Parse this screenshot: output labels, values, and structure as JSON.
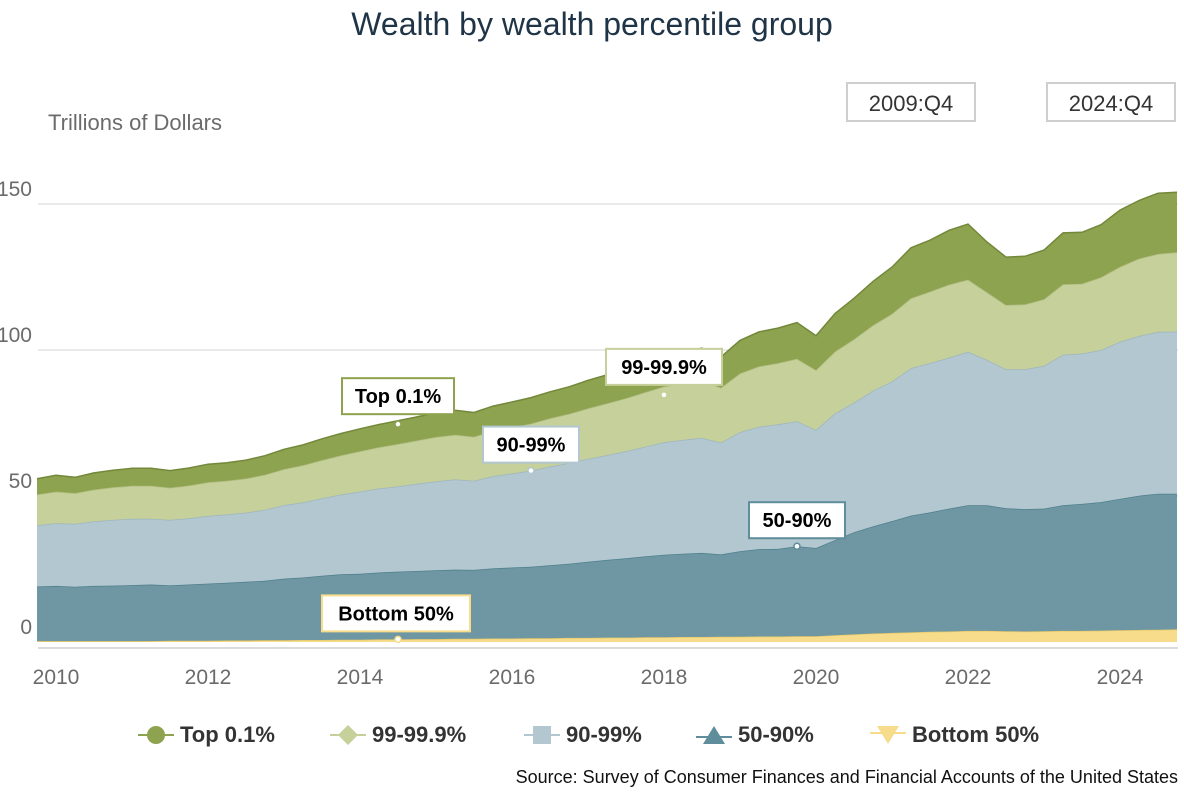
{
  "header": {
    "title": "Wealth by wealth percentile group",
    "y_unit_label": "Trillions of Dollars",
    "range_start": "2009:Q4",
    "range_end": "2024:Q4"
  },
  "source": "Source: Survey of Consumer Finances and Financial Accounts of the United States",
  "colors": {
    "top01": "#8ea34f",
    "p99_999": "#c5d09a",
    "p90_99": "#b2c7cf",
    "p50_90": "#6e97a3",
    "bottom50": "#f7dc8c",
    "grid": "#d6d6d6"
  },
  "chart_data": {
    "type": "area",
    "stacked": true,
    "title": "Wealth by wealth percentile group",
    "ylabel": "Trillions of Dollars",
    "xlabel": "",
    "ylim": [
      0,
      160
    ],
    "xlim": [
      2009.75,
      2024.75
    ],
    "y_ticks": [
      0,
      50,
      100,
      150
    ],
    "x_ticks": [
      2010,
      2012,
      2014,
      2016,
      2018,
      2020,
      2022,
      2024
    ],
    "legend_position": "bottom",
    "grid": true,
    "x": [
      2009.75,
      2010.0,
      2010.25,
      2010.5,
      2010.75,
      2011.0,
      2011.25,
      2011.5,
      2011.75,
      2012.0,
      2012.25,
      2012.5,
      2012.75,
      2013.0,
      2013.25,
      2013.5,
      2013.75,
      2014.0,
      2014.25,
      2014.5,
      2014.75,
      2015.0,
      2015.25,
      2015.5,
      2015.75,
      2016.0,
      2016.25,
      2016.5,
      2016.75,
      2017.0,
      2017.25,
      2017.5,
      2017.75,
      2018.0,
      2018.25,
      2018.5,
      2018.75,
      2019.0,
      2019.25,
      2019.5,
      2019.75,
      2020.0,
      2020.25,
      2020.5,
      2020.75,
      2021.0,
      2021.25,
      2021.5,
      2021.75,
      2022.0,
      2022.25,
      2022.5,
      2022.75,
      2023.0,
      2023.25,
      2023.5,
      2023.75,
      2024.0,
      2024.25,
      2024.5,
      2024.75
    ],
    "series": [
      {
        "name": "Bottom 50%",
        "values": [
          0.3,
          0.3,
          0.3,
          0.3,
          0.3,
          0.3,
          0.3,
          0.4,
          0.4,
          0.4,
          0.5,
          0.5,
          0.6,
          0.6,
          0.7,
          0.7,
          0.8,
          0.8,
          0.9,
          0.9,
          1.0,
          1.0,
          1.1,
          1.1,
          1.2,
          1.2,
          1.3,
          1.3,
          1.4,
          1.4,
          1.5,
          1.5,
          1.6,
          1.6,
          1.7,
          1.7,
          1.8,
          1.8,
          1.9,
          1.9,
          2.0,
          2.0,
          2.3,
          2.6,
          2.9,
          3.1,
          3.3,
          3.5,
          3.6,
          3.8,
          3.8,
          3.7,
          3.6,
          3.7,
          3.8,
          3.8,
          3.9,
          4.0,
          4.1,
          4.2,
          4.3
        ]
      },
      {
        "name": "50-90%",
        "values": [
          18.7,
          18.9,
          18.6,
          18.9,
          19.0,
          19.2,
          19.4,
          19.0,
          19.3,
          19.6,
          19.8,
          20.1,
          20.4,
          21.1,
          21.4,
          22.0,
          22.4,
          22.6,
          22.9,
          23.2,
          23.3,
          23.6,
          23.7,
          23.6,
          24.0,
          24.3,
          24.5,
          25.0,
          25.4,
          26.1,
          26.6,
          27.2,
          27.7,
          28.3,
          28.5,
          28.8,
          28.2,
          29.3,
          29.9,
          30.0,
          30.8,
          30.2,
          32.6,
          35.0,
          36.7,
          38.3,
          40.0,
          40.9,
          42.1,
          43.0,
          43.0,
          42.1,
          41.9,
          42.0,
          43.0,
          43.5,
          44.0,
          45.0,
          46.0,
          46.6,
          46.5
        ]
      },
      {
        "name": "90-99%",
        "values": [
          21.0,
          21.5,
          21.6,
          22.1,
          22.5,
          22.7,
          22.5,
          22.4,
          22.7,
          23.2,
          23.4,
          23.7,
          24.3,
          25.2,
          25.7,
          26.5,
          27.3,
          28.1,
          28.8,
          29.2,
          29.9,
          30.4,
          30.9,
          30.5,
          31.6,
          32.2,
          32.9,
          33.8,
          34.5,
          35.2,
          35.9,
          36.6,
          37.6,
          38.5,
          39.0,
          39.4,
          38.3,
          40.8,
          41.9,
          42.7,
          42.8,
          40.4,
          43.4,
          44.4,
          46.5,
          47.8,
          50.5,
          51.1,
          51.7,
          52.6,
          49.8,
          47.6,
          47.9,
          48.9,
          51.6,
          51.5,
          52.1,
          53.8,
          54.7,
          55.4,
          55.5
        ]
      },
      {
        "name": "99-99.9%",
        "values": [
          10.5,
          10.8,
          10.5,
          10.9,
          11.2,
          11.3,
          11.3,
          11.0,
          11.2,
          11.5,
          11.5,
          11.7,
          12.0,
          12.3,
          12.7,
          13.1,
          13.4,
          13.8,
          14.1,
          14.5,
          14.8,
          15.2,
          15.3,
          15.1,
          15.5,
          15.8,
          16.1,
          16.5,
          16.8,
          17.3,
          17.7,
          18.2,
          18.6,
          19.1,
          19.4,
          19.6,
          18.8,
          20.1,
          20.7,
          20.9,
          21.4,
          20.5,
          21.2,
          21.7,
          22.4,
          23.2,
          23.9,
          24.5,
          25.0,
          24.7,
          23.2,
          22.0,
          22.2,
          22.8,
          24.1,
          23.9,
          24.9,
          25.7,
          26.5,
          26.7,
          27.2
        ]
      },
      {
        "name": "Top 0.1%",
        "values": [
          5.4,
          5.6,
          5.4,
          5.7,
          5.8,
          6.0,
          6.0,
          5.9,
          6.0,
          6.2,
          6.2,
          6.3,
          6.5,
          6.8,
          7.0,
          7.3,
          7.5,
          7.7,
          7.8,
          8.0,
          8.1,
          8.3,
          8.4,
          8.3,
          8.5,
          8.7,
          8.9,
          9.1,
          9.3,
          9.6,
          9.8,
          10.1,
          10.4,
          10.7,
          10.9,
          11.1,
          10.5,
          11.3,
          11.8,
          12.0,
          12.4,
          11.8,
          13.0,
          14.0,
          15.0,
          16.0,
          17.3,
          17.6,
          18.6,
          19.0,
          17.2,
          16.4,
          16.5,
          16.8,
          17.6,
          17.6,
          18.0,
          19.4,
          19.9,
          20.8,
          20.5
        ]
      }
    ],
    "annotations": [
      {
        "text": "Top 0.1%",
        "series": "Top 0.1%",
        "x": 2014.5
      },
      {
        "text": "99-99.9%",
        "series": "99-99.9%",
        "x": 2018.0
      },
      {
        "text": "90-99%",
        "series": "90-99%",
        "x": 2016.25
      },
      {
        "text": "50-90%",
        "series": "50-90%",
        "x": 2019.75
      },
      {
        "text": "Bottom 50%",
        "series": "Bottom 50%",
        "x": 2014.5
      }
    ]
  },
  "legend": [
    {
      "label": "Top 0.1%",
      "marker": "circle",
      "color": "#8ea34f"
    },
    {
      "label": "99-99.9%",
      "marker": "diamond",
      "color": "#c5d09a"
    },
    {
      "label": "90-99%",
      "marker": "square",
      "color": "#b2c7cf"
    },
    {
      "label": "50-90%",
      "marker": "triangle",
      "color": "#5f8d9b"
    },
    {
      "label": "Bottom 50%",
      "marker": "triangle-down",
      "color": "#f7dc8c"
    }
  ]
}
